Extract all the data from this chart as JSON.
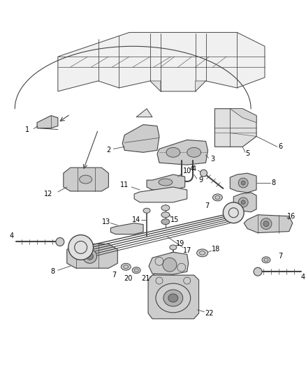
{
  "background_color": "#ffffff",
  "figure_width": 4.38,
  "figure_height": 5.33,
  "dpi": 100,
  "lc": "#444444",
  "fc_light": "#e0e0e0",
  "fc_mid": "#cccccc",
  "fc_dark": "#aaaaaa",
  "label_fontsize": 7.0
}
